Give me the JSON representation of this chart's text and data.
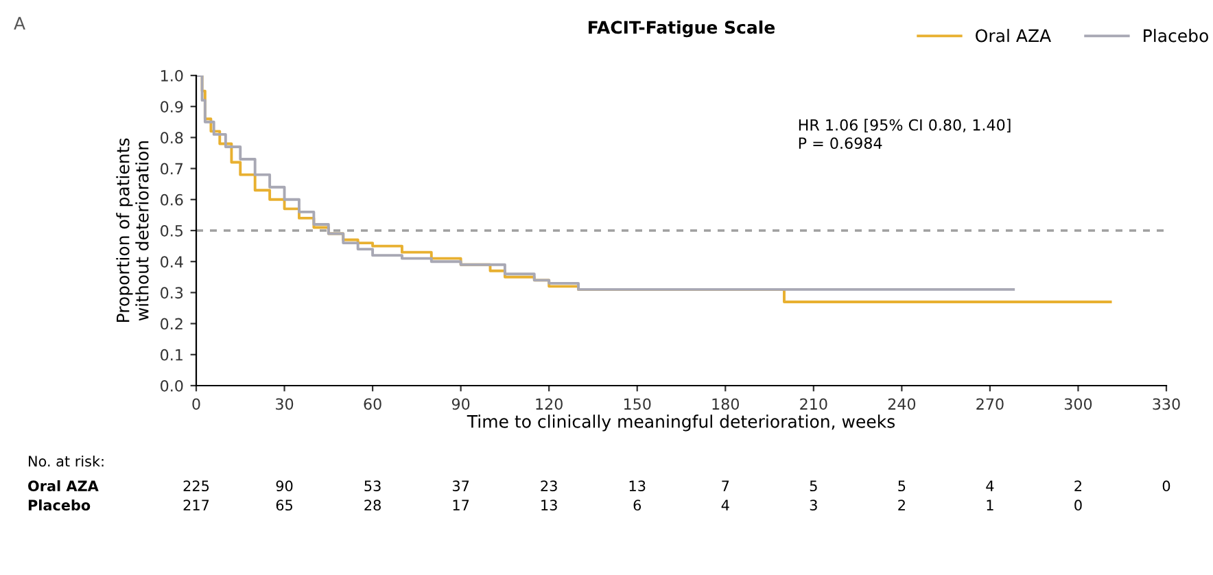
{
  "chart_data": {
    "type": "step",
    "title": "FACIT-Fatigue Scale",
    "xlabel": "Time to clinically meaningful deterioration, weeks",
    "ylabel": "Proportion of patients\nwithout deterioration",
    "series": [
      {
        "name": "Oral AZA",
        "color": "#e8b030",
        "x": [
          0,
          2,
          3,
          5,
          8,
          12,
          15,
          20,
          25,
          30,
          35,
          40,
          45,
          50,
          55,
          60,
          70,
          80,
          90,
          100,
          105,
          115,
          120,
          130,
          199,
          200,
          311
        ],
        "values": [
          1.0,
          0.95,
          0.86,
          0.82,
          0.78,
          0.72,
          0.68,
          0.63,
          0.6,
          0.57,
          0.54,
          0.51,
          0.49,
          0.47,
          0.46,
          0.45,
          0.43,
          0.41,
          0.39,
          0.37,
          0.35,
          0.34,
          0.32,
          0.31,
          0.31,
          0.27,
          0.27
        ]
      },
      {
        "name": "Placebo",
        "color": "#a8a8b4",
        "x": [
          0,
          2,
          3,
          6,
          10,
          15,
          20,
          25,
          30,
          35,
          40,
          45,
          50,
          55,
          60,
          70,
          80,
          90,
          100,
          105,
          115,
          120,
          130,
          278
        ],
        "values": [
          1.0,
          0.92,
          0.85,
          0.81,
          0.77,
          0.73,
          0.68,
          0.64,
          0.6,
          0.56,
          0.52,
          0.49,
          0.46,
          0.44,
          0.42,
          0.41,
          0.4,
          0.39,
          0.39,
          0.36,
          0.34,
          0.33,
          0.31,
          0.31
        ]
      }
    ],
    "xlim": [
      0,
      330
    ],
    "xticks": [
      0,
      30,
      60,
      90,
      120,
      150,
      180,
      210,
      240,
      270,
      300,
      330
    ],
    "ylim": [
      0,
      1.0
    ],
    "yticks": [
      {
        "value": 0,
        "label": "0.0"
      },
      0.1,
      0.2,
      0.3,
      0.4,
      0.5,
      0.6,
      0.7,
      0.8,
      0.9,
      {
        "value": 1,
        "label": "1.0"
      }
    ],
    "ref_lines": [
      {
        "axis": "y",
        "value": 0.5,
        "color": "#a0a0a0",
        "line_style": "dashed"
      }
    ],
    "legend": "top right",
    "grid": false,
    "annotations": [
      "A",
      "HR 1.06 [95% CI 0.80, 1.40]",
      "P = 0.6984",
      "No. at risk:",
      "Oral AZA",
      "225",
      "90",
      "53",
      "37",
      "23",
      "13",
      "7",
      "5",
      "5",
      "4",
      "2",
      "0",
      "Placebo",
      "217",
      "65",
      "28",
      "17",
      "13",
      "6",
      "4",
      "3",
      "2",
      "1",
      "0"
    ]
  }
}
